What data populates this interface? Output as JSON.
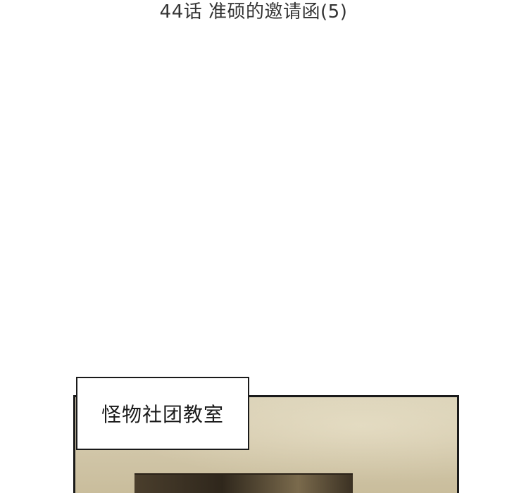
{
  "header": {
    "chapter_title": "44话 准硕的邀请函(5)"
  },
  "panel": {
    "caption": "怪物社团教室"
  }
}
